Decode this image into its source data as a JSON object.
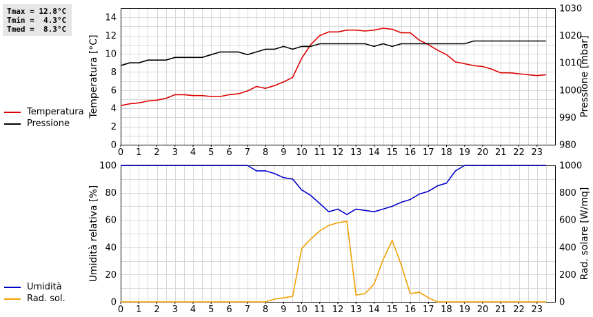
{
  "stats": {
    "tmax": "Tmax = 12.8°C",
    "tmin": "Tmin =  4.3°C",
    "tmed": "Tmed =  8.3°C"
  },
  "colors": {
    "temperature": "#dd0000",
    "pressure": "#000000",
    "humidity": "#0000cc",
    "radiation": "#f0a000"
  },
  "chart_data": [
    {
      "type": "line",
      "xlim": [
        0,
        24
      ],
      "x_ticks": [
        "0",
        "1",
        "2",
        "3",
        "4",
        "5",
        "6",
        "7",
        "8",
        "9",
        "10",
        "11",
        "12",
        "13",
        "14",
        "15",
        "16",
        "17",
        "18",
        "19",
        "20",
        "21",
        "22",
        "23"
      ],
      "grid": true,
      "legend_position": "left",
      "left_axis": {
        "label": "Temperatura [°C]",
        "ylim": [
          0,
          15
        ],
        "ticks": [
          "0",
          "2",
          "4",
          "6",
          "8",
          "10",
          "12",
          "14"
        ]
      },
      "right_axis": {
        "label": "Pressione [mbar]",
        "ylim": [
          980,
          1030
        ],
        "ticks": [
          "980",
          "990",
          "1000",
          "1010",
          "1020",
          "1030"
        ]
      },
      "series": [
        {
          "name": "Temperatura",
          "axis": "left",
          "x": [
            0,
            0.5,
            1,
            1.5,
            2,
            2.5,
            3,
            3.5,
            4,
            4.5,
            5,
            5.5,
            6,
            6.5,
            7,
            7.5,
            8,
            8.5,
            9,
            9.5,
            10,
            10.5,
            11,
            11.5,
            12,
            12.5,
            13,
            13.5,
            14,
            14.5,
            15,
            15.5,
            16,
            16.5,
            17,
            17.5,
            18,
            18.5,
            19,
            19.5,
            20,
            20.5,
            21,
            21.5,
            22,
            22.5,
            23,
            23.5
          ],
          "y": [
            4.3,
            4.5,
            4.6,
            4.8,
            4.9,
            5.1,
            5.5,
            5.5,
            5.4,
            5.4,
            5.3,
            5.3,
            5.5,
            5.6,
            5.9,
            6.4,
            6.2,
            6.5,
            6.9,
            7.4,
            9.5,
            11.0,
            12.0,
            12.4,
            12.4,
            12.6,
            12.6,
            12.5,
            12.6,
            12.8,
            12.7,
            12.3,
            12.3,
            11.5,
            11.0,
            10.4,
            9.9,
            9.1,
            8.9,
            8.7,
            8.6,
            8.3,
            7.9,
            7.9,
            7.8,
            7.7,
            7.6,
            7.7
          ]
        },
        {
          "name": "Pressione",
          "axis": "right",
          "x": [
            0,
            0.5,
            1,
            1.5,
            2,
            2.5,
            3,
            3.5,
            4,
            4.5,
            5,
            5.5,
            6,
            6.5,
            7,
            7.5,
            8,
            8.5,
            9,
            9.5,
            10,
            10.5,
            11,
            11.5,
            12,
            12.5,
            13,
            13.5,
            14,
            14.5,
            15,
            15.5,
            16,
            16.5,
            17,
            17.5,
            18,
            18.5,
            19,
            19.5,
            20,
            20.5,
            21,
            21.5,
            22,
            22.5,
            23,
            23.5
          ],
          "y": [
            1009,
            1010,
            1010,
            1011,
            1011,
            1011,
            1012,
            1012,
            1012,
            1012,
            1013,
            1014,
            1014,
            1014,
            1013,
            1014,
            1015,
            1015,
            1016,
            1015,
            1016,
            1016,
            1017,
            1017,
            1017,
            1017,
            1017,
            1017,
            1016,
            1017,
            1016,
            1017,
            1017,
            1017,
            1017,
            1017,
            1017,
            1017,
            1017,
            1018,
            1018,
            1018,
            1018,
            1018,
            1018,
            1018,
            1018,
            1018
          ]
        }
      ]
    },
    {
      "type": "line",
      "xlim": [
        0,
        24
      ],
      "x_ticks": [
        "0",
        "1",
        "2",
        "3",
        "4",
        "5",
        "6",
        "7",
        "8",
        "9",
        "10",
        "11",
        "12",
        "13",
        "14",
        "15",
        "16",
        "17",
        "18",
        "19",
        "20",
        "21",
        "22",
        "23"
      ],
      "grid": true,
      "legend_position": "left",
      "left_axis": {
        "label": "Umidità relativa [%]",
        "ylim": [
          0,
          100
        ],
        "ticks": [
          "0",
          "20",
          "40",
          "60",
          "80",
          "100"
        ]
      },
      "right_axis": {
        "label": "Rad. solare [W/mq]",
        "ylim": [
          0,
          1000
        ],
        "ticks": [
          "0",
          "200",
          "400",
          "600",
          "800",
          "1000"
        ]
      },
      "series": [
        {
          "name": "Umidità",
          "axis": "left",
          "x": [
            0,
            1,
            2,
            3,
            4,
            5,
            6,
            7,
            7.5,
            8,
            8.5,
            9,
            9.5,
            10,
            10.5,
            11,
            11.5,
            12,
            12.5,
            13,
            13.5,
            14,
            14.5,
            15,
            15.5,
            16,
            16.5,
            17,
            17.5,
            18,
            18.5,
            19,
            20,
            21,
            22,
            23,
            23.5
          ],
          "y": [
            100,
            100,
            100,
            100,
            100,
            100,
            100,
            100,
            96,
            96,
            94,
            91,
            90,
            82,
            78,
            72,
            66,
            68,
            64,
            68,
            67,
            66,
            68,
            70,
            73,
            75,
            79,
            81,
            85,
            87,
            96,
            100,
            100,
            100,
            100,
            100,
            100
          ]
        },
        {
          "name": "Rad. sol.",
          "axis": "right",
          "x": [
            0,
            1,
            2,
            3,
            4,
            5,
            6,
            7,
            8,
            8.5,
            9,
            9.5,
            10,
            10.5,
            11,
            11.5,
            12,
            12.5,
            13,
            13.5,
            14,
            14.5,
            15,
            15.5,
            16,
            16.5,
            17,
            17.5,
            18,
            19,
            20,
            21,
            22,
            23,
            23.5
          ],
          "y": [
            0,
            0,
            0,
            0,
            0,
            0,
            0,
            0,
            0,
            20,
            30,
            40,
            390,
            460,
            520,
            560,
            580,
            590,
            50,
            60,
            130,
            310,
            450,
            270,
            60,
            70,
            30,
            0,
            0,
            0,
            0,
            0,
            0,
            0,
            0
          ]
        }
      ]
    }
  ]
}
